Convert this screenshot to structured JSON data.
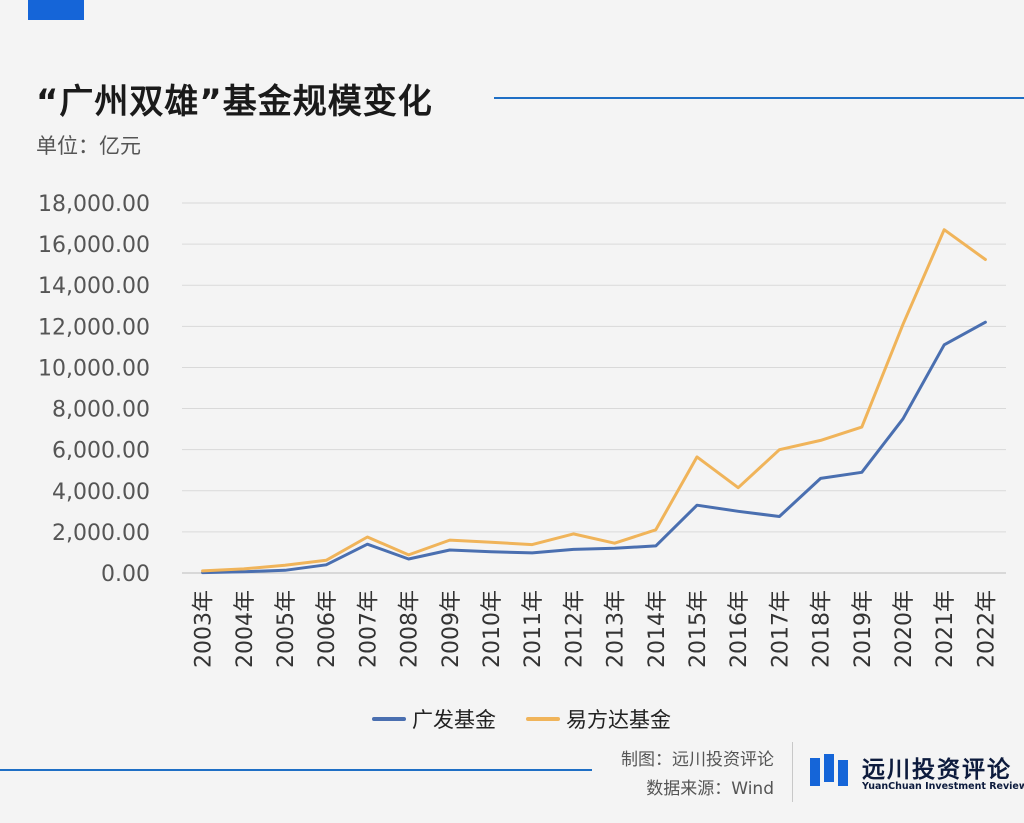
{
  "header": {
    "title": "“广州双雄”基金规模变化",
    "unit": "单位：亿元"
  },
  "footer": {
    "credit_maker": "制图：远川投资评论",
    "credit_source": "数据来源：Wind",
    "brand_name": "远川投资评论",
    "brand_sub": "YuanChuan Investment Review"
  },
  "colors": {
    "accent_blue": "#1f6fc5",
    "series_gf": "#4a6fb0",
    "series_yfd": "#f0b45a",
    "grid": "#d9d9d9",
    "text": "#555555"
  },
  "chart_data": {
    "type": "line",
    "title": "“广州双雄”基金规模变化",
    "ylabel": "单位：亿元",
    "xlabel": "",
    "ylim": [
      0,
      18000
    ],
    "y_ticks": [
      "0.00",
      "2,000.00",
      "4,000.00",
      "6,000.00",
      "8,000.00",
      "10,000.00",
      "12,000.00",
      "14,000.00",
      "16,000.00",
      "18,000.00"
    ],
    "grid": true,
    "legend_position": "bottom-center",
    "categories": [
      "2003年",
      "2004年",
      "2005年",
      "2006年",
      "2007年",
      "2008年",
      "2009年",
      "2010年",
      "2011年",
      "2012年",
      "2013年",
      "2014年",
      "2015年",
      "2016年",
      "2017年",
      "2018年",
      "2019年",
      "2020年",
      "2021年",
      "2022年"
    ],
    "series": [
      {
        "name": "广发基金",
        "color": "#4a6fb0",
        "values": [
          20,
          60,
          130,
          400,
          1400,
          680,
          1120,
          1030,
          980,
          1150,
          1200,
          1320,
          3300,
          3000,
          2750,
          4600,
          4900,
          7500,
          11100,
          12200
        ]
      },
      {
        "name": "易方达基金",
        "color": "#f0b45a",
        "values": [
          100,
          200,
          380,
          620,
          1750,
          880,
          1600,
          1500,
          1380,
          1900,
          1450,
          2100,
          5650,
          4150,
          6000,
          6450,
          7100,
          12100,
          16700,
          15250
        ]
      }
    ]
  }
}
